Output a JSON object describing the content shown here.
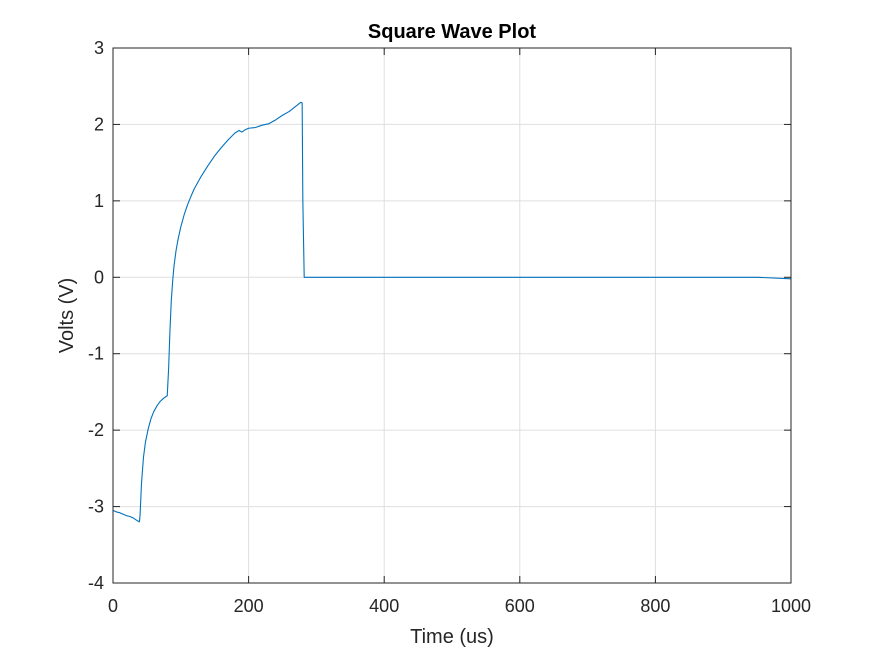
{
  "chart_data": {
    "type": "line",
    "title": "Square Wave Plot",
    "xlabel": "Time (us)",
    "ylabel": "Volts (V)",
    "xlim": [
      0,
      1000
    ],
    "ylim": [
      -4,
      3
    ],
    "xticks": [
      0,
      200,
      400,
      600,
      800,
      1000
    ],
    "xtick_labels": [
      "0",
      "200",
      "400",
      "600",
      "800",
      "1000"
    ],
    "yticks": [
      -4,
      -3,
      -2,
      -1,
      0,
      1,
      2,
      3
    ],
    "ytick_labels": [
      "-4",
      "-3",
      "-2",
      "-1",
      "0",
      "1",
      "2",
      "3"
    ],
    "grid": true,
    "legend": "none",
    "series": [
      {
        "color": "#0072BD",
        "x": [
          0,
          5,
          10,
          15,
          20,
          25,
          30,
          35,
          39,
          40,
          42,
          45,
          48,
          52,
          56,
          60,
          65,
          70,
          75,
          80,
          82,
          84,
          86,
          88,
          90,
          93,
          96,
          100,
          105,
          110,
          115,
          120,
          130,
          140,
          150,
          160,
          170,
          180,
          186,
          190,
          195,
          200,
          210,
          220,
          230,
          240,
          250,
          260,
          270,
          277,
          279,
          280,
          282,
          290,
          300,
          320,
          350,
          400,
          450,
          500,
          550,
          600,
          650,
          700,
          750,
          800,
          850,
          900,
          950,
          1000
        ],
        "y": [
          -3.05,
          -3.07,
          -3.08,
          -3.1,
          -3.12,
          -3.13,
          -3.15,
          -3.18,
          -3.2,
          -3.1,
          -2.7,
          -2.35,
          -2.15,
          -1.98,
          -1.85,
          -1.76,
          -1.68,
          -1.62,
          -1.58,
          -1.55,
          -1.2,
          -0.7,
          -0.3,
          -0.05,
          0.15,
          0.35,
          0.5,
          0.66,
          0.82,
          0.95,
          1.06,
          1.16,
          1.32,
          1.46,
          1.59,
          1.7,
          1.8,
          1.89,
          1.92,
          1.9,
          1.93,
          1.95,
          1.96,
          1.99,
          2.01,
          2.06,
          2.12,
          2.17,
          2.24,
          2.29,
          2.28,
          1.0,
          0.0,
          0.0,
          0.0,
          0.0,
          0.0,
          0.0,
          0.0,
          0.0,
          0.0,
          0.0,
          0.0,
          0.0,
          0.0,
          0.0,
          0.0,
          0.0,
          0.0,
          -0.02
        ]
      }
    ]
  }
}
